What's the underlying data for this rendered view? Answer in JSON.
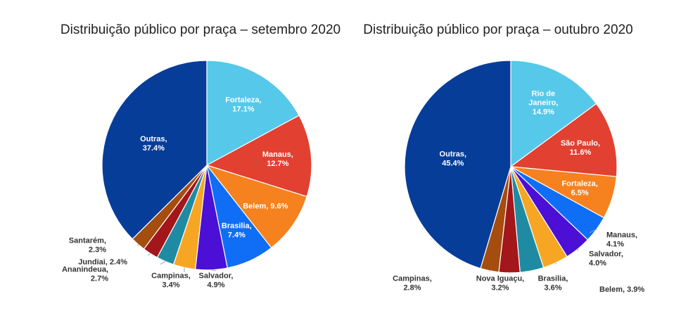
{
  "chart_data": [
    {
      "type": "pie",
      "title": "Distribuição público por praça – setembro 2020",
      "slices": [
        {
          "label": "Fortaleza, 17.1%",
          "lines": [
            "Fortaleza,",
            "17.1%"
          ],
          "value": 17.1,
          "color": "#56c8ea",
          "inside": true
        },
        {
          "label": "Manaus, 12.7%",
          "lines": [
            "Manaus,",
            "12.7%"
          ],
          "value": 12.7,
          "color": "#e24031",
          "inside": true
        },
        {
          "label": "Belem, 9.6%",
          "lines": [
            "Belem, 9.6%"
          ],
          "value": 9.6,
          "color": "#f5821f",
          "inside": true
        },
        {
          "label": "Brasilia, 7.4%",
          "lines": [
            "Brasilia,",
            "7.4%"
          ],
          "value": 7.4,
          "color": "#0f6ef5",
          "inside": true
        },
        {
          "label": "Salvador, 4.9%",
          "lines": [
            "Salvador,",
            "4.9%"
          ],
          "value": 4.9,
          "color": "#4b0fd6",
          "inside": false
        },
        {
          "label": "Campinas, 3.4%",
          "lines": [
            "Campinas,",
            "3.4%"
          ],
          "value": 3.4,
          "color": "#f6a623",
          "inside": false
        },
        {
          "label": "Ananindeua, 2.7%",
          "lines": [
            "Ananindeua,",
            "2.7%"
          ],
          "value": 2.7,
          "color": "#1f8ba3",
          "inside": false
        },
        {
          "label": "Jundiai, 2.4%",
          "lines": [
            "Jundiai, 2.4%"
          ],
          "value": 2.4,
          "color": "#a3161a",
          "inside": false
        },
        {
          "label": "Santarém, 2.3%",
          "lines": [
            "Santarém,",
            "2.3%"
          ],
          "value": 2.3,
          "color": "#a54d0f",
          "inside": false
        },
        {
          "label": "Outras, 37.4%",
          "lines": [
            "Outras,",
            "37.4%"
          ],
          "value": 37.4,
          "color": "#063d99",
          "inside": true
        }
      ]
    },
    {
      "type": "pie",
      "title": "Distribuição público por praça – outubro 2020",
      "slices": [
        {
          "label": "Rio de Janeiro, 14.9%",
          "lines": [
            "Rio de",
            "Janeiro,",
            "14.9%"
          ],
          "value": 14.9,
          "color": "#56c8ea",
          "inside": true
        },
        {
          "label": "São Paulo, 11.6%",
          "lines": [
            "São Paulo,",
            "11.6%"
          ],
          "value": 11.6,
          "color": "#e24031",
          "inside": true
        },
        {
          "label": "Fortaleza, 6.5%",
          "lines": [
            "Fortaleza,",
            "6.5%"
          ],
          "value": 6.5,
          "color": "#f5821f",
          "inside": true
        },
        {
          "label": "Manaus, 4.1%",
          "lines": [
            "Manaus,",
            "4.1%"
          ],
          "value": 4.1,
          "color": "#0f6ef5",
          "inside": false
        },
        {
          "label": "Salvador, 4.0%",
          "lines": [
            "Salvador,",
            "4.0%"
          ],
          "value": 4.0,
          "color": "#4b0fd6",
          "inside": false
        },
        {
          "label": "Belem, 3.9%",
          "lines": [
            "Belem, 3.9%"
          ],
          "value": 3.9,
          "color": "#f6a623",
          "inside": false
        },
        {
          "label": "Brasilia, 3.6%",
          "lines": [
            "Brasilia,",
            "3.6%"
          ],
          "value": 3.6,
          "color": "#1f8ba3",
          "inside": false
        },
        {
          "label": "Nova Iguaçu, 3.2%",
          "lines": [
            "Nova Iguaçu,",
            "3.2%"
          ],
          "value": 3.2,
          "color": "#a3161a",
          "inside": false
        },
        {
          "label": "Campinas, 2.8%",
          "lines": [
            "Campinas,",
            "2.8%"
          ],
          "value": 2.8,
          "color": "#a54d0f",
          "inside": false
        },
        {
          "label": "Outras, 45.4%",
          "lines": [
            "Outras,",
            "45.4%"
          ],
          "value": 45.4,
          "color": "#063d99",
          "inside": true
        }
      ]
    }
  ]
}
